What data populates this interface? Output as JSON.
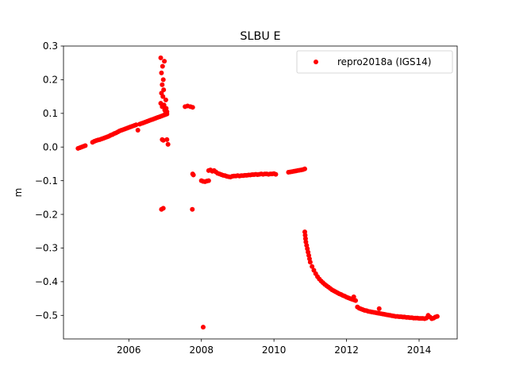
{
  "chart_data": {
    "type": "scatter",
    "title": "SLBU E",
    "xlabel": "",
    "ylabel": "m",
    "xlim": [
      2004.2,
      2015.05
    ],
    "ylim": [
      -0.57,
      0.3
    ],
    "xticks": [
      2006,
      2008,
      2010,
      2012,
      2014
    ],
    "xtick_labels": [
      "2006",
      "2008",
      "2010",
      "2012",
      "2014"
    ],
    "yticks": [
      -0.5,
      -0.4,
      -0.3,
      -0.2,
      -0.1,
      0.0,
      0.1,
      0.2,
      0.3
    ],
    "ytick_labels": [
      "−0.5",
      "−0.4",
      "−0.3",
      "−0.2",
      "−0.1",
      "0.0",
      "0.1",
      "0.2",
      "0.3"
    ],
    "grid": false,
    "legend": "top-right",
    "colors": {
      "series": "#ff0000"
    },
    "series": [
      {
        "name": "repro2018a (IGS14)",
        "marker": "circle",
        "points": [
          [
            2004.6,
            -0.004
          ],
          [
            2004.65,
            -0.002
          ],
          [
            2004.7,
            0.0
          ],
          [
            2004.75,
            0.002
          ],
          [
            2004.8,
            0.004
          ],
          [
            2005.0,
            0.014
          ],
          [
            2005.05,
            0.017
          ],
          [
            2005.1,
            0.019
          ],
          [
            2005.15,
            0.021
          ],
          [
            2005.2,
            0.022
          ],
          [
            2005.25,
            0.024
          ],
          [
            2005.3,
            0.026
          ],
          [
            2005.35,
            0.028
          ],
          [
            2005.4,
            0.03
          ],
          [
            2005.45,
            0.032
          ],
          [
            2005.5,
            0.035
          ],
          [
            2005.55,
            0.037
          ],
          [
            2005.6,
            0.04
          ],
          [
            2005.65,
            0.042
          ],
          [
            2005.7,
            0.045
          ],
          [
            2005.75,
            0.048
          ],
          [
            2005.8,
            0.05
          ],
          [
            2005.85,
            0.052
          ],
          [
            2005.9,
            0.054
          ],
          [
            2005.95,
            0.056
          ],
          [
            2006.0,
            0.058
          ],
          [
            2006.05,
            0.06
          ],
          [
            2006.1,
            0.062
          ],
          [
            2006.15,
            0.064
          ],
          [
            2006.2,
            0.066
          ],
          [
            2006.25,
            0.05
          ],
          [
            2006.3,
            0.068
          ],
          [
            2006.35,
            0.07
          ],
          [
            2006.4,
            0.072
          ],
          [
            2006.45,
            0.074
          ],
          [
            2006.5,
            0.076
          ],
          [
            2006.55,
            0.078
          ],
          [
            2006.6,
            0.08
          ],
          [
            2006.65,
            0.082
          ],
          [
            2006.7,
            0.084
          ],
          [
            2006.75,
            0.086
          ],
          [
            2006.8,
            0.088
          ],
          [
            2006.85,
            0.09
          ],
          [
            2006.9,
            0.092
          ],
          [
            2006.95,
            0.094
          ],
          [
            2007.0,
            0.096
          ],
          [
            2007.05,
            0.098
          ],
          [
            2006.88,
            0.265
          ],
          [
            2006.93,
            0.24
          ],
          [
            2006.98,
            0.255
          ],
          [
            2006.9,
            0.22
          ],
          [
            2006.95,
            0.2
          ],
          [
            2006.92,
            0.185
          ],
          [
            2006.96,
            0.17
          ],
          [
            2006.9,
            0.16
          ],
          [
            2006.94,
            0.15
          ],
          [
            2007.02,
            0.14
          ],
          [
            2006.88,
            0.13
          ],
          [
            2006.97,
            0.125
          ],
          [
            2006.92,
            0.12
          ],
          [
            2007.03,
            0.115
          ],
          [
            2006.99,
            0.11
          ],
          [
            2007.05,
            0.105
          ],
          [
            2007.01,
            0.1
          ],
          [
            2006.92,
            0.022
          ],
          [
            2006.95,
            0.02
          ],
          [
            2007.05,
            0.022
          ],
          [
            2007.08,
            0.008
          ],
          [
            2006.9,
            -0.185
          ],
          [
            2006.95,
            -0.182
          ],
          [
            2007.55,
            0.12
          ],
          [
            2007.62,
            0.122
          ],
          [
            2007.7,
            0.12
          ],
          [
            2007.76,
            0.118
          ],
          [
            2007.76,
            -0.08
          ],
          [
            2007.78,
            -0.083
          ],
          [
            2007.75,
            -0.185
          ],
          [
            2008.0,
            -0.1
          ],
          [
            2008.05,
            -0.102
          ],
          [
            2008.1,
            -0.103
          ],
          [
            2008.15,
            -0.101
          ],
          [
            2008.2,
            -0.1
          ],
          [
            2008.2,
            -0.07
          ],
          [
            2008.25,
            -0.068
          ],
          [
            2008.3,
            -0.072
          ],
          [
            2008.35,
            -0.07
          ],
          [
            2008.4,
            -0.074
          ],
          [
            2008.45,
            -0.078
          ],
          [
            2008.5,
            -0.08
          ],
          [
            2008.55,
            -0.082
          ],
          [
            2008.6,
            -0.084
          ],
          [
            2008.65,
            -0.085
          ],
          [
            2008.7,
            -0.087
          ],
          [
            2008.75,
            -0.088
          ],
          [
            2008.8,
            -0.089
          ],
          [
            2008.85,
            -0.087
          ],
          [
            2008.9,
            -0.086
          ],
          [
            2008.95,
            -0.086
          ],
          [
            2009.0,
            -0.085
          ],
          [
            2009.05,
            -0.086
          ],
          [
            2009.1,
            -0.085
          ],
          [
            2009.15,
            -0.085
          ],
          [
            2009.2,
            -0.084
          ],
          [
            2009.25,
            -0.084
          ],
          [
            2009.3,
            -0.083
          ],
          [
            2009.35,
            -0.083
          ],
          [
            2009.4,
            -0.082
          ],
          [
            2009.45,
            -0.082
          ],
          [
            2009.5,
            -0.081
          ],
          [
            2009.55,
            -0.082
          ],
          [
            2009.6,
            -0.081
          ],
          [
            2009.65,
            -0.08
          ],
          [
            2009.7,
            -0.081
          ],
          [
            2009.75,
            -0.08
          ],
          [
            2009.8,
            -0.08
          ],
          [
            2009.85,
            -0.081
          ],
          [
            2009.9,
            -0.08
          ],
          [
            2009.95,
            -0.08
          ],
          [
            2010.0,
            -0.079
          ],
          [
            2010.05,
            -0.081
          ],
          [
            2008.05,
            -0.535
          ],
          [
            2010.4,
            -0.075
          ],
          [
            2010.45,
            -0.074
          ],
          [
            2010.5,
            -0.073
          ],
          [
            2010.55,
            -0.072
          ],
          [
            2010.6,
            -0.071
          ],
          [
            2010.65,
            -0.07
          ],
          [
            2010.7,
            -0.069
          ],
          [
            2010.75,
            -0.068
          ],
          [
            2010.8,
            -0.067
          ],
          [
            2010.85,
            -0.065
          ],
          [
            2010.85,
            -0.252
          ],
          [
            2010.86,
            -0.262
          ],
          [
            2010.87,
            -0.272
          ],
          [
            2010.88,
            -0.282
          ],
          [
            2010.9,
            -0.292
          ],
          [
            2010.92,
            -0.302
          ],
          [
            2010.94,
            -0.312
          ],
          [
            2010.96,
            -0.322
          ],
          [
            2010.98,
            -0.332
          ],
          [
            2011.0,
            -0.342
          ],
          [
            2011.05,
            -0.355
          ],
          [
            2011.1,
            -0.366
          ],
          [
            2011.15,
            -0.376
          ],
          [
            2011.2,
            -0.385
          ],
          [
            2011.25,
            -0.392
          ],
          [
            2011.3,
            -0.398
          ],
          [
            2011.35,
            -0.403
          ],
          [
            2011.4,
            -0.408
          ],
          [
            2011.45,
            -0.412
          ],
          [
            2011.5,
            -0.416
          ],
          [
            2011.55,
            -0.42
          ],
          [
            2011.6,
            -0.424
          ],
          [
            2011.65,
            -0.427
          ],
          [
            2011.7,
            -0.43
          ],
          [
            2011.75,
            -0.433
          ],
          [
            2011.8,
            -0.436
          ],
          [
            2011.85,
            -0.438
          ],
          [
            2011.9,
            -0.441
          ],
          [
            2011.95,
            -0.443
          ],
          [
            2012.0,
            -0.446
          ],
          [
            2012.05,
            -0.448
          ],
          [
            2012.1,
            -0.45
          ],
          [
            2012.15,
            -0.452
          ],
          [
            2012.2,
            -0.454
          ],
          [
            2012.25,
            -0.456
          ],
          [
            2012.2,
            -0.445
          ],
          [
            2012.3,
            -0.475
          ],
          [
            2012.35,
            -0.479
          ],
          [
            2012.4,
            -0.481
          ],
          [
            2012.45,
            -0.483
          ],
          [
            2012.5,
            -0.485
          ],
          [
            2012.55,
            -0.486
          ],
          [
            2012.6,
            -0.488
          ],
          [
            2012.65,
            -0.489
          ],
          [
            2012.7,
            -0.49
          ],
          [
            2012.75,
            -0.491
          ],
          [
            2012.8,
            -0.492
          ],
          [
            2012.85,
            -0.493
          ],
          [
            2012.9,
            -0.494
          ],
          [
            2012.95,
            -0.495
          ],
          [
            2013.0,
            -0.496
          ],
          [
            2012.9,
            -0.48
          ],
          [
            2013.05,
            -0.497
          ],
          [
            2013.1,
            -0.498
          ],
          [
            2013.15,
            -0.499
          ],
          [
            2013.2,
            -0.5
          ],
          [
            2013.25,
            -0.501
          ],
          [
            2013.3,
            -0.502
          ],
          [
            2013.35,
            -0.503
          ],
          [
            2013.4,
            -0.503
          ],
          [
            2013.45,
            -0.504
          ],
          [
            2013.5,
            -0.504
          ],
          [
            2013.55,
            -0.505
          ],
          [
            2013.6,
            -0.505
          ],
          [
            2013.65,
            -0.506
          ],
          [
            2013.7,
            -0.506
          ],
          [
            2013.75,
            -0.507
          ],
          [
            2013.8,
            -0.507
          ],
          [
            2013.85,
            -0.508
          ],
          [
            2013.9,
            -0.508
          ],
          [
            2013.95,
            -0.508
          ],
          [
            2014.0,
            -0.509
          ],
          [
            2014.05,
            -0.509
          ],
          [
            2014.1,
            -0.509
          ],
          [
            2014.15,
            -0.51
          ],
          [
            2014.2,
            -0.508
          ],
          [
            2014.25,
            -0.5
          ],
          [
            2014.3,
            -0.505
          ],
          [
            2014.35,
            -0.51
          ],
          [
            2014.4,
            -0.508
          ],
          [
            2014.45,
            -0.505
          ],
          [
            2014.5,
            -0.503
          ]
        ]
      }
    ]
  }
}
